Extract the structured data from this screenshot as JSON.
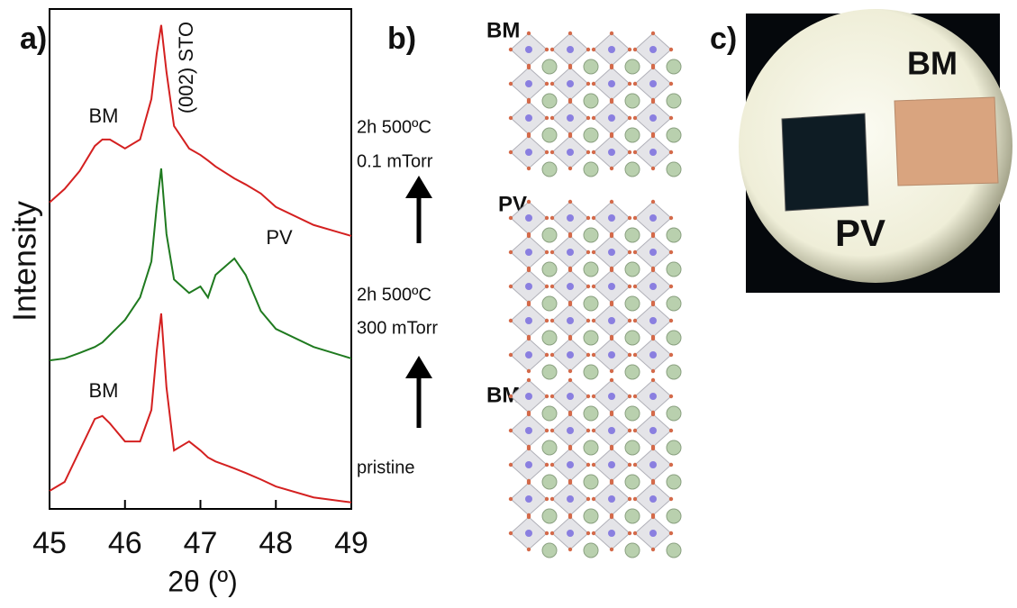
{
  "chart_data": {
    "type": "line",
    "panel_label": "a)",
    "xlabel": "2θ (º)",
    "ylabel": "Intensity",
    "x": [
      45,
      45.2,
      45.4,
      45.6,
      45.7,
      45.8,
      46.0,
      46.2,
      46.35,
      46.42,
      46.48,
      46.55,
      46.65,
      46.85,
      47.0,
      47.1,
      47.2,
      47.45,
      47.6,
      47.8,
      48.0,
      48.5,
      49.0
    ],
    "xlim": [
      45,
      49
    ],
    "xticks": [
      45,
      46,
      47,
      48,
      49
    ],
    "ylim": [
      0,
      100
    ],
    "series": [
      {
        "color": "#d42020",
        "values": [
          3.6,
          5.4,
          11.7,
          18.0,
          18.6,
          17.1,
          13.5,
          13.5,
          19.8,
          31.5,
          39.1,
          24.3,
          11.7,
          13.5,
          11.7,
          10.3,
          9.5,
          8.1,
          7.2,
          5.9,
          4.5,
          2.3,
          1.3
        ]
      },
      {
        "color": "#1f7a1f",
        "values": [
          29.7,
          30.1,
          31.2,
          32.4,
          33.3,
          34.8,
          37.8,
          42.3,
          49.5,
          60.4,
          68.1,
          55.0,
          45.9,
          43.2,
          44.5,
          42.3,
          46.8,
          50.1,
          46.8,
          39.6,
          36.0,
          32.4,
          30.1
        ]
      },
      {
        "color": "#d42020",
        "values": [
          61.3,
          64.0,
          67.6,
          72.6,
          73.9,
          73.9,
          72.1,
          73.9,
          82.0,
          91.0,
          96.8,
          87.4,
          76.6,
          72.1,
          70.8,
          69.7,
          68.5,
          66.1,
          64.9,
          63.1,
          60.4,
          56.8,
          54.6
        ]
      }
    ],
    "annotations": [
      "BM",
      "(002) STO",
      "PV",
      "BM"
    ],
    "conditions": [
      "2h 500ºC",
      "0.1 mTorr",
      "2h 500ºC",
      "300 mTorr",
      "pristine"
    ]
  },
  "panel_b": {
    "label": "b)",
    "structures": [
      "BM",
      "PV",
      "BM"
    ]
  },
  "panel_c": {
    "label": "c)",
    "photo_labels": [
      "BM",
      "PV"
    ]
  }
}
